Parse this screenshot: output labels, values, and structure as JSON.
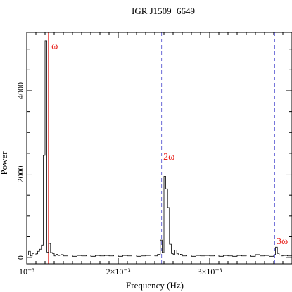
{
  "chart_data": {
    "type": "line",
    "title": "IGR J1509−6649",
    "xlabel": "Frequency (Hz)",
    "ylabel": "Power",
    "xlim": [
      0.001,
      0.0039
    ],
    "ylim": [
      -150,
      5400
    ],
    "x_ticks": [
      {
        "value": 0.001,
        "label": "10⁻³"
      },
      {
        "value": 0.002,
        "label": "2×10⁻³"
      },
      {
        "value": 0.003,
        "label": "3×10⁻³"
      }
    ],
    "y_ticks": [
      {
        "value": 0,
        "label": "0"
      },
      {
        "value": 2000,
        "label": "2000"
      },
      {
        "value": 4000,
        "label": "4000"
      }
    ],
    "grid": false,
    "series": [
      {
        "style": "step",
        "color": "#000000",
        "x": [
          0.001,
          0.00102,
          0.00104,
          0.00106,
          0.00108,
          0.0011,
          0.00112,
          0.00114,
          0.00116,
          0.00118,
          0.0012,
          0.00122,
          0.00124,
          0.00126,
          0.00128,
          0.0013,
          0.00132,
          0.00134,
          0.00136,
          0.00138,
          0.0014,
          0.00145,
          0.0015,
          0.00155,
          0.0016,
          0.00165,
          0.0017,
          0.00175,
          0.0018,
          0.00185,
          0.0019,
          0.00195,
          0.002,
          0.00205,
          0.0021,
          0.00215,
          0.0022,
          0.00225,
          0.0023,
          0.00235,
          0.0024,
          0.00243,
          0.00246,
          0.00248,
          0.0025,
          0.00252,
          0.00254,
          0.00256,
          0.00258,
          0.0026,
          0.00262,
          0.00264,
          0.00266,
          0.00268,
          0.0027,
          0.00275,
          0.0028,
          0.00285,
          0.0029,
          0.00295,
          0.003,
          0.00305,
          0.0031,
          0.00315,
          0.0032,
          0.00325,
          0.0033,
          0.00335,
          0.0034,
          0.00345,
          0.0035,
          0.00355,
          0.0036,
          0.00365,
          0.0037,
          0.00372,
          0.00374,
          0.00376,
          0.00378,
          0.0038,
          0.00385,
          0.0039
        ],
        "y": [
          60,
          150,
          40,
          100,
          60,
          90,
          150,
          200,
          300,
          2450,
          5200,
          130,
          340,
          120,
          100,
          40,
          80,
          50,
          60,
          70,
          40,
          60,
          30,
          50,
          40,
          60,
          30,
          50,
          40,
          50,
          40,
          60,
          30,
          50,
          40,
          60,
          30,
          40,
          50,
          60,
          40,
          80,
          420,
          120,
          1950,
          1650,
          1200,
          320,
          100,
          80,
          180,
          90,
          60,
          80,
          40,
          60,
          30,
          50,
          40,
          50,
          40,
          60,
          30,
          50,
          40,
          30,
          50,
          40,
          60,
          30,
          70,
          40,
          50,
          30,
          60,
          250,
          100,
          60,
          40,
          50,
          40,
          30
        ]
      }
    ],
    "reference_lines": [
      {
        "x": 0.001237,
        "color": "#e8211c",
        "style": "solid"
      },
      {
        "x": 0.002474,
        "color": "#6c6cd8",
        "style": "dashed"
      },
      {
        "x": 0.003711,
        "color": "#6c6cd8",
        "style": "dashed"
      }
    ],
    "annotations": [
      {
        "label": "ω",
        "x": 0.001255,
        "y": 5000,
        "color": "#e8211c"
      },
      {
        "label": "2ω",
        "x": 0.002478,
        "y": 2350,
        "color": "#e8211c"
      },
      {
        "label": "3ω",
        "x": 0.003715,
        "y": 320,
        "color": "#e8211c"
      }
    ]
  }
}
